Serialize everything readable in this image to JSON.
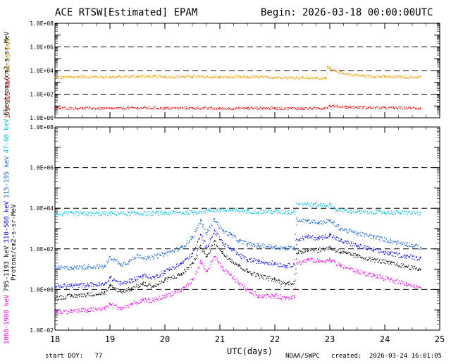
{
  "header": {
    "title": "ACE RTSW[Estimated] EPAM",
    "begin": "Begin: 2026-03-18 00:00:00UTC"
  },
  "footer": {
    "start_doy": "start DOY:   77",
    "xlabel": "UTC(days)",
    "agency": "NOAA/SWPC",
    "created_label": "created:",
    "created": "2026-03-24 16:01:05"
  },
  "colors": {
    "ch_30_53": "#e8a000",
    "ch_175_315": "#e01010",
    "ch_47_68": "#00b8e0",
    "ch_115_195": "#1060d0",
    "ch_310_580": "#0000e0",
    "ch_795_1193": "#000000",
    "ch_1060_1900": "#e000e0"
  },
  "chart_data": [
    {
      "type": "scatter",
      "panel": "electrons",
      "ylabel": "Electrons/cm2-s-sr-MeV",
      "y_scale": "log",
      "ylim": [
        1,
        100000000
      ],
      "yticks": [
        "1.0E+00",
        "1.0E+02",
        "1.0E+04",
        "1.0E+06",
        "1.0E+08"
      ],
      "dashed_lines": [
        100,
        10000,
        1000000
      ],
      "xlim": [
        18,
        25
      ],
      "series": [
        {
          "name": "38-53 keV",
          "color_key": "ch_30_53",
          "points": [
            [
              18.0,
              2700
            ],
            [
              18.5,
              3200
            ],
            [
              19.0,
              3000
            ],
            [
              19.5,
              3500
            ],
            [
              20.0,
              3100
            ],
            [
              20.5,
              3300
            ],
            [
              21.0,
              2900
            ],
            [
              21.5,
              3000
            ],
            [
              22.0,
              2800
            ],
            [
              22.5,
              2600
            ],
            [
              22.75,
              2400
            ],
            [
              22.93,
              2600
            ],
            [
              22.95,
              20000
            ],
            [
              23.0,
              14000
            ],
            [
              23.1,
              9000
            ],
            [
              23.3,
              5500
            ],
            [
              23.6,
              3800
            ],
            [
              24.0,
              3200
            ],
            [
              24.3,
              3000
            ],
            [
              24.65,
              2900
            ]
          ]
        },
        {
          "name": "175-315 keV",
          "color_key": "ch_175_315",
          "points": [
            [
              18.0,
              7
            ],
            [
              18.5,
              7
            ],
            [
              19.0,
              6.5
            ],
            [
              19.5,
              7.5
            ],
            [
              20.0,
              7
            ],
            [
              20.5,
              7
            ],
            [
              21.0,
              6.5
            ],
            [
              21.5,
              7
            ],
            [
              22.0,
              7
            ],
            [
              22.5,
              6.5
            ],
            [
              22.9,
              7
            ],
            [
              23.0,
              11
            ],
            [
              23.3,
              9
            ],
            [
              23.6,
              8
            ],
            [
              24.0,
              7.5
            ],
            [
              24.65,
              7
            ]
          ]
        }
      ]
    },
    {
      "type": "scatter",
      "panel": "protons",
      "ylabel": "Protons/cm2-s-sr-MeV",
      "y_scale": "log",
      "ylim": [
        0.01,
        100000000
      ],
      "yticks": [
        "1.0E-02",
        "1.0E+00",
        "1.0E+02",
        "1.0E+04",
        "1.0E+06",
        "1.0E+08"
      ],
      "dashed_lines": [
        1,
        100,
        10000,
        1000000
      ],
      "xlim": [
        18,
        25
      ],
      "xticks": [
        "18",
        "19",
        "20",
        "21",
        "22",
        "23",
        "24",
        "25"
      ],
      "series": [
        {
          "name": "47-68 keV",
          "color_key": "ch_47_68",
          "points": [
            [
              18.0,
              5500
            ],
            [
              18.5,
              5600
            ],
            [
              19.0,
              5800
            ],
            [
              19.5,
              5800
            ],
            [
              20.0,
              6000
            ],
            [
              20.5,
              6500
            ],
            [
              20.8,
              8000
            ],
            [
              21.0,
              8500
            ],
            [
              21.5,
              7500
            ],
            [
              22.0,
              7000
            ],
            [
              22.35,
              6500
            ],
            [
              22.4,
              18000
            ],
            [
              22.7,
              16000
            ],
            [
              23.0,
              15000
            ],
            [
              23.1,
              9000
            ],
            [
              23.5,
              7000
            ],
            [
              24.0,
              6500
            ],
            [
              24.65,
              6000
            ]
          ]
        },
        {
          "name": "115-195 keV",
          "color_key": "ch_115_195",
          "points": [
            [
              18.0,
              12
            ],
            [
              18.3,
              12
            ],
            [
              18.6,
              14
            ],
            [
              18.9,
              14
            ],
            [
              19.0,
              40
            ],
            [
              19.2,
              18
            ],
            [
              19.35,
              25
            ],
            [
              19.5,
              50
            ],
            [
              19.7,
              35
            ],
            [
              20.0,
              60
            ],
            [
              20.3,
              120
            ],
            [
              20.5,
              400
            ],
            [
              20.65,
              2500
            ],
            [
              20.75,
              600
            ],
            [
              20.9,
              3000
            ],
            [
              21.05,
              800
            ],
            [
              21.2,
              500
            ],
            [
              21.35,
              250
            ],
            [
              21.5,
              180
            ],
            [
              21.7,
              150
            ],
            [
              22.0,
              130
            ],
            [
              22.2,
              110
            ],
            [
              22.35,
              120
            ],
            [
              22.4,
              3000
            ],
            [
              22.6,
              2500
            ],
            [
              22.8,
              2000
            ],
            [
              23.0,
              2500
            ],
            [
              23.2,
              1000
            ],
            [
              23.5,
              600
            ],
            [
              23.8,
              400
            ],
            [
              24.1,
              250
            ],
            [
              24.4,
              180
            ],
            [
              24.65,
              120
            ]
          ]
        },
        {
          "name": "310-580 keV",
          "color_key": "ch_310_580",
          "points": [
            [
              18.0,
              1.5
            ],
            [
              18.3,
              1.6
            ],
            [
              18.6,
              1.8
            ],
            [
              18.9,
              1.8
            ],
            [
              19.0,
              4
            ],
            [
              19.2,
              2
            ],
            [
              19.4,
              3
            ],
            [
              19.6,
              5
            ],
            [
              19.8,
              4
            ],
            [
              20.0,
              8
            ],
            [
              20.3,
              20
            ],
            [
              20.5,
              60
            ],
            [
              20.65,
              500
            ],
            [
              20.75,
              120
            ],
            [
              20.9,
              800
            ],
            [
              21.05,
              200
            ],
            [
              21.2,
              100
            ],
            [
              21.35,
              50
            ],
            [
              21.5,
              30
            ],
            [
              21.7,
              25
            ],
            [
              22.0,
              20
            ],
            [
              22.2,
              15
            ],
            [
              22.35,
              18
            ],
            [
              22.4,
              300
            ],
            [
              22.6,
              400
            ],
            [
              22.8,
              350
            ],
            [
              23.0,
              500
            ],
            [
              23.2,
              250
            ],
            [
              23.5,
              150
            ],
            [
              23.8,
              90
            ],
            [
              24.1,
              60
            ],
            [
              24.4,
              45
            ],
            [
              24.65,
              35
            ]
          ]
        },
        {
          "name": "795-1193 keV",
          "color_key": "ch_795_1193",
          "points": [
            [
              18.0,
              0.4
            ],
            [
              18.3,
              0.5
            ],
            [
              18.6,
              0.6
            ],
            [
              18.9,
              0.7
            ],
            [
              19.0,
              1.5
            ],
            [
              19.2,
              0.8
            ],
            [
              19.4,
              1.2
            ],
            [
              19.6,
              2
            ],
            [
              19.8,
              1.5
            ],
            [
              20.0,
              3
            ],
            [
              20.3,
              6
            ],
            [
              20.5,
              20
            ],
            [
              20.65,
              150
            ],
            [
              20.75,
              40
            ],
            [
              20.9,
              250
            ],
            [
              21.05,
              60
            ],
            [
              21.2,
              30
            ],
            [
              21.35,
              15
            ],
            [
              21.5,
              8
            ],
            [
              21.7,
              5
            ],
            [
              22.0,
              3
            ],
            [
              22.2,
              2
            ],
            [
              22.35,
              2.5
            ],
            [
              22.4,
              60
            ],
            [
              22.6,
              100
            ],
            [
              22.8,
              90
            ],
            [
              23.0,
              120
            ],
            [
              23.2,
              70
            ],
            [
              23.5,
              45
            ],
            [
              23.8,
              30
            ],
            [
              24.1,
              20
            ],
            [
              24.4,
              14
            ],
            [
              24.65,
              10
            ]
          ]
        },
        {
          "name": "1060-1900 keV",
          "color_key": "ch_1060_1900",
          "points": [
            [
              18.0,
              0.08
            ],
            [
              18.3,
              0.09
            ],
            [
              18.6,
              0.1
            ],
            [
              18.9,
              0.12
            ],
            [
              19.0,
              0.2
            ],
            [
              19.2,
              0.12
            ],
            [
              19.4,
              0.2
            ],
            [
              19.6,
              0.3
            ],
            [
              19.8,
              0.3
            ],
            [
              20.0,
              0.5
            ],
            [
              20.3,
              1
            ],
            [
              20.5,
              3
            ],
            [
              20.65,
              25
            ],
            [
              20.75,
              8
            ],
            [
              20.9,
              40
            ],
            [
              21.05,
              10
            ],
            [
              21.2,
              5
            ],
            [
              21.35,
              2
            ],
            [
              21.5,
              1
            ],
            [
              21.7,
              0.5
            ],
            [
              22.0,
              0.5
            ],
            [
              22.2,
              0.4
            ],
            [
              22.35,
              0.5
            ],
            [
              22.4,
              20
            ],
            [
              22.6,
              30
            ],
            [
              22.8,
              25
            ],
            [
              23.0,
              30
            ],
            [
              23.2,
              15
            ],
            [
              23.5,
              8
            ],
            [
              23.8,
              5
            ],
            [
              24.1,
              3
            ],
            [
              24.4,
              2
            ],
            [
              24.65,
              1.2
            ]
          ]
        }
      ]
    }
  ]
}
